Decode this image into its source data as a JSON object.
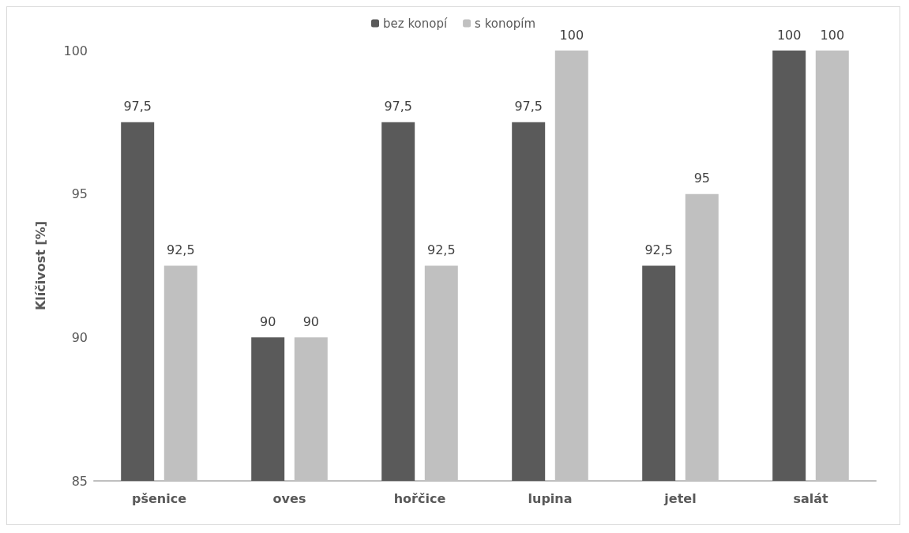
{
  "chart_data": {
    "type": "bar",
    "ylabel": "Klíčivost [%]",
    "categories": [
      "pšenice",
      "oves",
      "hořčice",
      "lupina",
      "jetel",
      "salát"
    ],
    "series": [
      {
        "name": "bez konopí",
        "color": "#5a5a5a",
        "values": [
          97.5,
          90,
          97.5,
          97.5,
          92.5,
          100
        ],
        "value_labels": [
          "97,5",
          "90",
          "97,5",
          "97,5",
          "92,5",
          "100"
        ]
      },
      {
        "name": "s konopím",
        "color": "#c0c0c0",
        "values": [
          92.5,
          90,
          92.5,
          100,
          95,
          100
        ],
        "value_labels": [
          "92,5",
          "90",
          "92,5",
          "100",
          "95",
          "100"
        ]
      }
    ],
    "ylim": [
      85,
      100
    ],
    "yticks": [
      85,
      90,
      95,
      100
    ],
    "grid": false,
    "legend": "top"
  }
}
